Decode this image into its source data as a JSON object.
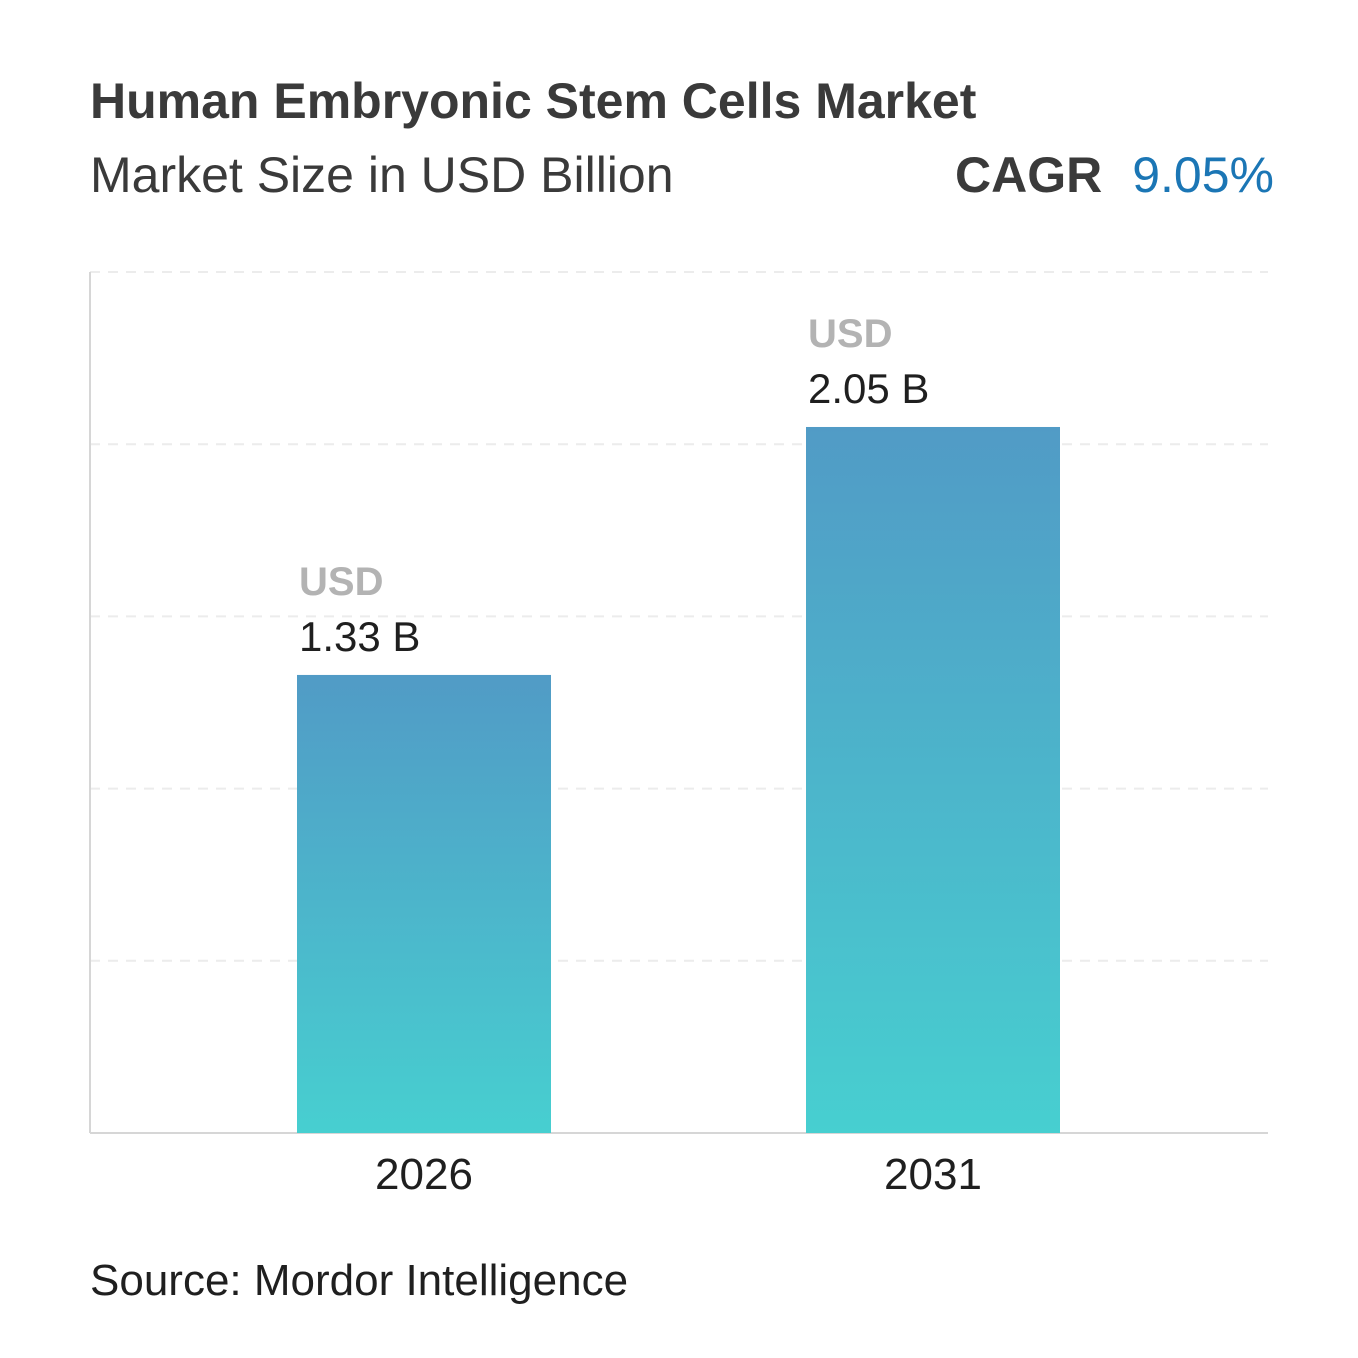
{
  "header": {
    "title": "Human Embryonic Stem Cells Market",
    "subtitle": "Market Size in USD Billion",
    "cagr_label": "CAGR",
    "cagr_value": "9.05%"
  },
  "source": "Source: Mordor Intelligence",
  "colors": {
    "bar_top": "#519bc6",
    "bar_bottom": "#47cfd0",
    "cagr_accent": "#1b76b5",
    "unit_label": "#b3b3b3",
    "value_label": "#1f1f1f",
    "grid": "#ececec",
    "axis": "#d6d6d6"
  },
  "chart_data": {
    "type": "bar",
    "categories": [
      "2026",
      "2031"
    ],
    "values": [
      1.33,
      2.05
    ],
    "value_labels": [
      {
        "unit": "USD",
        "value": "1.33 B"
      },
      {
        "unit": "USD",
        "value": "2.05 B"
      }
    ],
    "ylim": [
      0,
      2.5
    ],
    "grid": true,
    "y_axis_labels": false
  }
}
